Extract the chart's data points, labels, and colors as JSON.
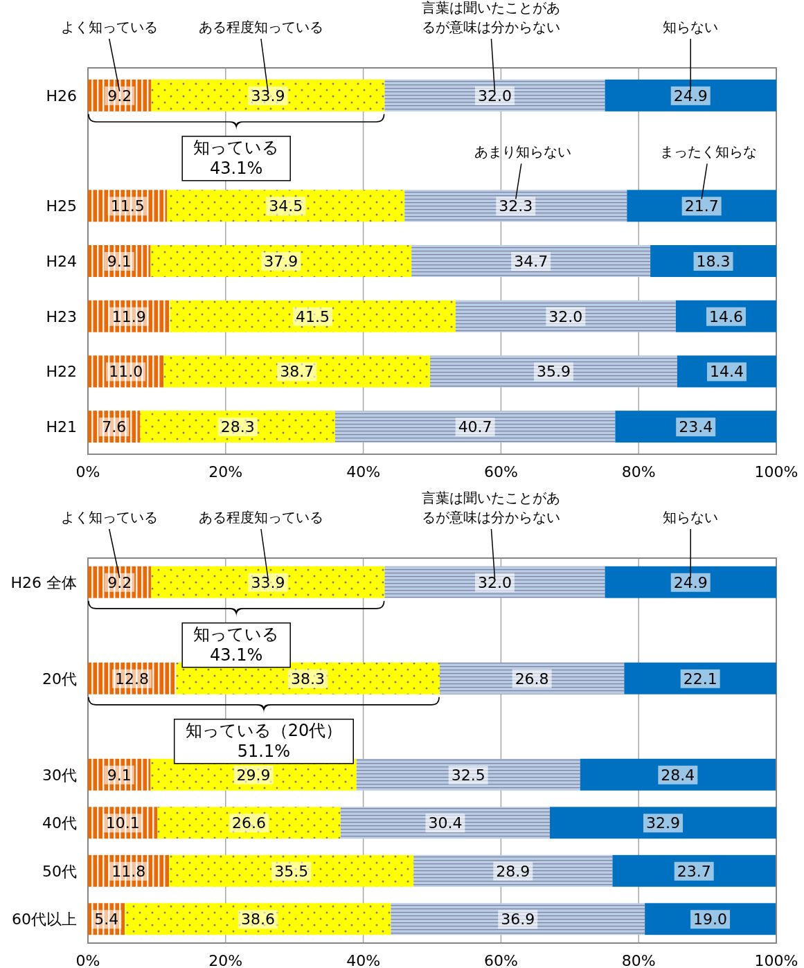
{
  "chart_data": [
    {
      "type": "bar",
      "orientation": "horizontal",
      "stacked": true,
      "grid": "x",
      "xlim": [
        0,
        100
      ],
      "xticks": [
        {
          "value": 0,
          "label": "0%"
        },
        {
          "value": 20,
          "label": "20%"
        },
        {
          "value": 40,
          "label": "40%"
        },
        {
          "value": 60,
          "label": "60%"
        },
        {
          "value": 80,
          "label": "80%"
        },
        {
          "value": 100,
          "label": "100%"
        }
      ],
      "categories": [
        "H26",
        null,
        "H25",
        "H24",
        "H23",
        "H22",
        "H21"
      ],
      "series": [
        {
          "name": "よく知っている",
          "color": "#e26b0a",
          "values": [
            9.2,
            null,
            11.5,
            9.1,
            11.9,
            11.0,
            7.6
          ],
          "value_labels": [
            "9.2",
            null,
            "11.5",
            "9.1",
            "11.9",
            "11.0",
            "7.6"
          ]
        },
        {
          "name": "ある程度知っている",
          "color": "#ffff00",
          "values": [
            33.9,
            null,
            34.5,
            37.9,
            41.5,
            38.7,
            28.3
          ],
          "value_labels": [
            "33.9",
            null,
            "34.5",
            "37.9",
            "41.5",
            "38.7",
            "28.3"
          ]
        },
        {
          "name": "言葉は聞いたことがあるが意味は分からない",
          "color": "#b8cce4",
          "values": [
            32.0,
            null,
            32.3,
            34.7,
            32.0,
            35.9,
            40.7
          ],
          "value_labels": [
            "32.0",
            null,
            "32.3",
            "34.7",
            "32.0",
            "35.9",
            "40.7"
          ]
        },
        {
          "name": "知らない",
          "color": "#0070c0",
          "values": [
            24.9,
            null,
            21.7,
            18.3,
            14.6,
            14.4,
            23.4
          ],
          "value_labels": [
            "24.9",
            null,
            "21.7",
            "18.3",
            "14.6",
            "14.4",
            "23.4"
          ]
        }
      ],
      "annotations": [
        "知っている\n43.1%",
        "あまり知らない",
        "まったく知らな"
      ]
    },
    {
      "type": "bar",
      "orientation": "horizontal",
      "stacked": true,
      "grid": "x",
      "xlim": [
        0,
        100
      ],
      "xticks": [
        {
          "value": 0,
          "label": "0%"
        },
        {
          "value": 20,
          "label": "20%"
        },
        {
          "value": 40,
          "label": "40%"
        },
        {
          "value": 60,
          "label": "60%"
        },
        {
          "value": 80,
          "label": "80%"
        },
        {
          "value": 100,
          "label": "100%"
        }
      ],
      "categories": [
        "H26 全体",
        null,
        "20代",
        null,
        "30代",
        "40代",
        "50代",
        "60代以上"
      ],
      "series": [
        {
          "name": "よく知っている",
          "color": "#e26b0a",
          "values": [
            9.2,
            null,
            12.8,
            null,
            9.1,
            10.1,
            11.8,
            5.4
          ],
          "value_labels": [
            "9.2",
            null,
            "12.8",
            null,
            "9.1",
            "10.1",
            "11.8",
            "5.4"
          ]
        },
        {
          "name": "ある程度知っている",
          "color": "#ffff00",
          "values": [
            33.9,
            null,
            38.3,
            null,
            29.9,
            26.6,
            35.5,
            38.6
          ],
          "value_labels": [
            "33.9",
            null,
            "38.3",
            null,
            "29.9",
            "26.6",
            "35.5",
            "38.6"
          ]
        },
        {
          "name": "言葉は聞いたことがあるが意味は分からない",
          "color": "#b8cce4",
          "values": [
            32.0,
            null,
            26.8,
            null,
            32.5,
            30.4,
            28.9,
            36.9
          ],
          "value_labels": [
            "32.0",
            null,
            "26.8",
            null,
            "32.5",
            "30.4",
            "28.9",
            "36.9"
          ]
        },
        {
          "name": "知らない",
          "color": "#0070c0",
          "values": [
            24.9,
            null,
            22.1,
            null,
            28.4,
            32.9,
            23.7,
            19.0
          ],
          "value_labels": [
            "24.9",
            null,
            "22.1",
            null,
            "28.4",
            "32.9",
            "23.7",
            "19.0"
          ]
        }
      ],
      "annotations": [
        "知っている\n43.1%",
        "知っている（20代）\n51.1%"
      ]
    }
  ]
}
